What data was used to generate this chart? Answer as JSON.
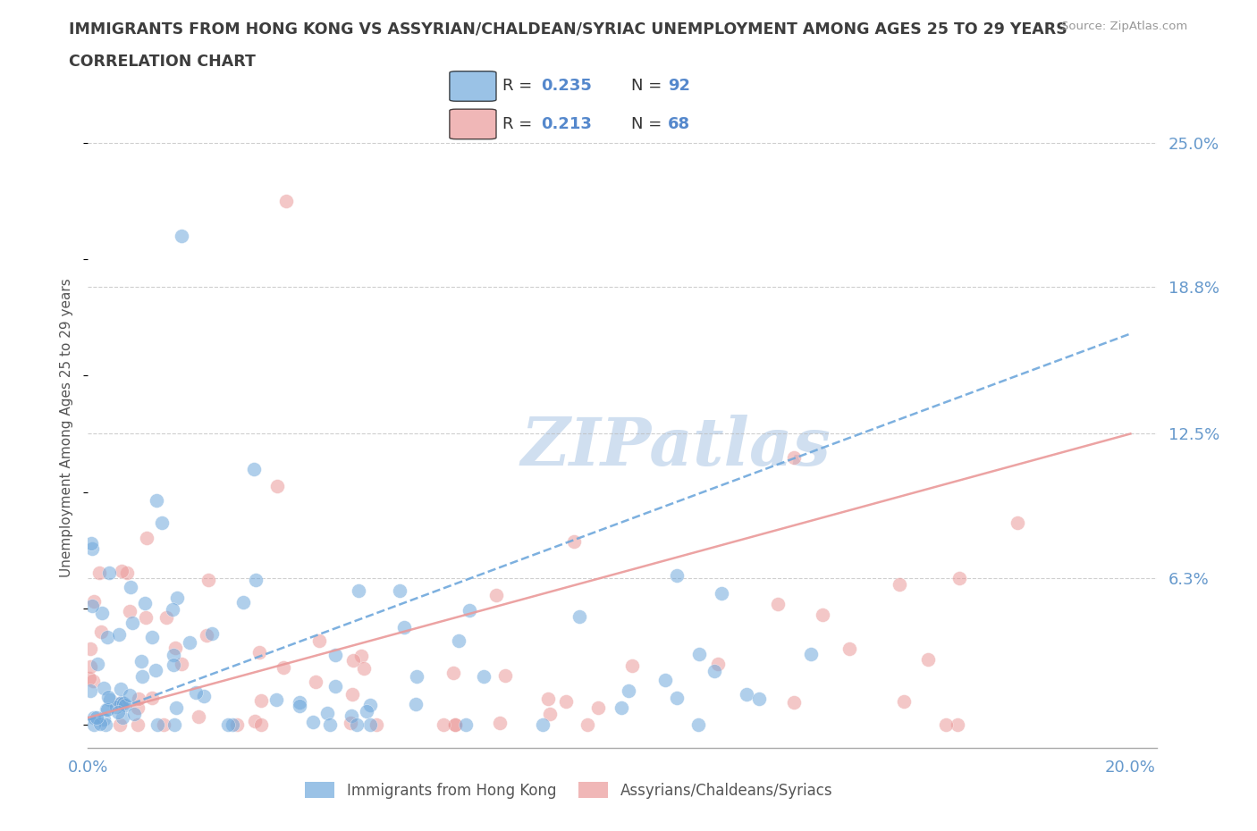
{
  "title_line1": "IMMIGRANTS FROM HONG KONG VS ASSYRIAN/CHALDEAN/SYRIAC UNEMPLOYMENT AMONG AGES 25 TO 29 YEARS",
  "title_line2": "CORRELATION CHART",
  "source_text": "Source: ZipAtlas.com",
  "ylabel": "Unemployment Among Ages 25 to 29 years",
  "xlim": [
    0.0,
    0.205
  ],
  "ylim": [
    -0.01,
    0.265
  ],
  "ytick_vals": [
    0.063,
    0.125,
    0.188,
    0.25
  ],
  "ytick_labels": [
    "6.3%",
    "12.5%",
    "18.8%",
    "25.0%"
  ],
  "xtick_vals": [
    0.0,
    0.02,
    0.04,
    0.06,
    0.08,
    0.1,
    0.12,
    0.14,
    0.16,
    0.18,
    0.2
  ],
  "xtick_labels": [
    "0.0%",
    "",
    "",
    "",
    "",
    "",
    "",
    "",
    "",
    "",
    "20.0%"
  ],
  "blue_R": 0.235,
  "blue_N": 92,
  "pink_R": 0.213,
  "pink_N": 68,
  "blue_color": "#6fa8dc",
  "pink_color": "#ea9999",
  "blue_label": "Immigrants from Hong Kong",
  "pink_label": "Assyrians/Chaldeans/Syriacs",
  "title_color": "#3d3d3d",
  "axis_label_color": "#6699cc",
  "watermark_color": "#d0dff0",
  "grid_color": "#bbbbbb",
  "legend_bg_color": "#e8f0f8",
  "legend_text_dark": "#333333",
  "legend_val_color": "#5588cc",
  "legend_n_color": "#5588cc",
  "blue_trendline_start_y": 0.002,
  "blue_trendline_end_y": 0.168,
  "pink_trendline_start_y": 0.003,
  "pink_trendline_end_y": 0.125
}
